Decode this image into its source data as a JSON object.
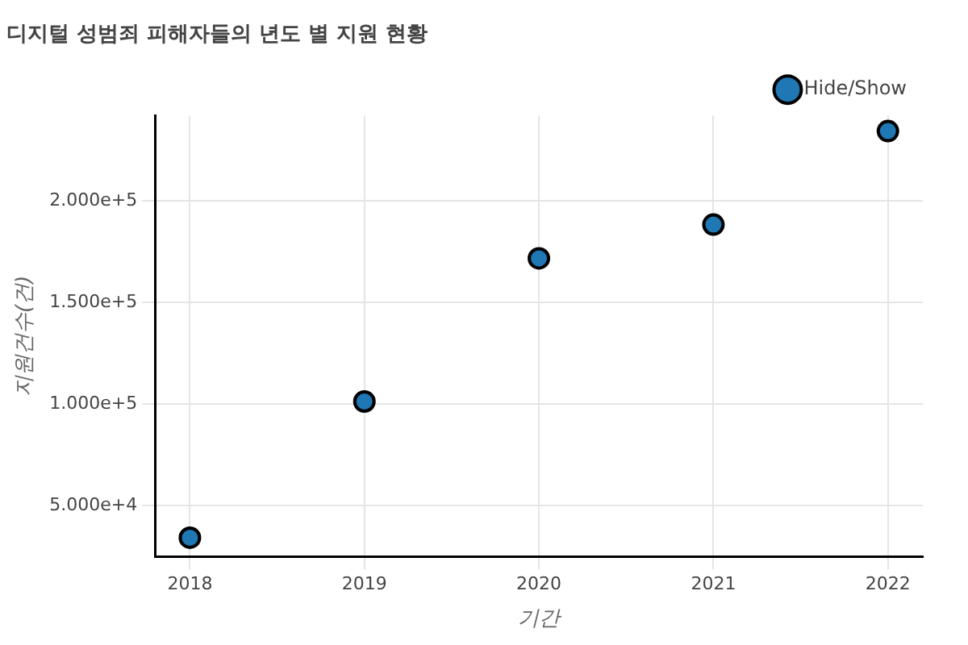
{
  "chart_data": {
    "type": "scatter",
    "title": "디지털 성범죄 피해자들의 년도 별 지원 현황",
    "xlabel": "기간",
    "ylabel": "지원건수(건)",
    "x": [
      2018,
      2019,
      2020,
      2021,
      2022
    ],
    "series": [
      {
        "name": "Hide/Show",
        "color": "#1f77b4",
        "values": [
          34300,
          101300,
          171700,
          188300,
          234300
        ]
      }
    ],
    "xlim": [
      2017.8,
      2022.2
    ],
    "xticks": [
      2018,
      2019,
      2020,
      2021,
      2022
    ],
    "ylim": [
      25000,
      242000
    ],
    "yticks": [
      {
        "value": 50000,
        "label": "5.000e+4"
      },
      {
        "value": 100000,
        "label": "1.000e+5"
      },
      {
        "value": 150000,
        "label": "1.500e+5"
      },
      {
        "value": 200000,
        "label": "2.000e+5"
      }
    ],
    "grid": true,
    "legend": "top right",
    "marker": "circle"
  }
}
